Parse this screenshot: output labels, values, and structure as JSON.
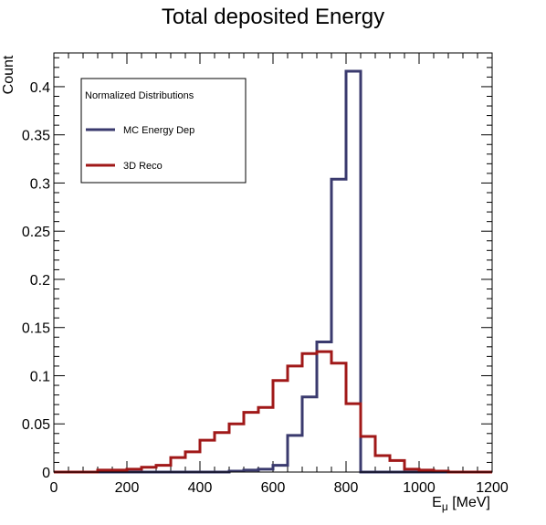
{
  "chart_data": {
    "type": "histogram",
    "title": "Total deposited Energy",
    "xlabel": {
      "main": "E",
      "sub": "μ",
      "unit": " [MeV]"
    },
    "ylabel": "Count",
    "xlim": [
      0,
      1200
    ],
    "ylim": [
      0,
      0.435
    ],
    "bin_edges": [
      0,
      40,
      80,
      120,
      160,
      200,
      240,
      280,
      320,
      360,
      400,
      440,
      480,
      520,
      560,
      600,
      640,
      680,
      720,
      760,
      800,
      840,
      880,
      920,
      960,
      1000,
      1040,
      1080,
      1120,
      1160,
      1200
    ],
    "x_ticks": [
      0,
      200,
      400,
      600,
      800,
      1000,
      1200
    ],
    "x_tick_labels": [
      "0",
      "200",
      "400",
      "600",
      "800",
      "1000",
      "1200"
    ],
    "y_ticks": [
      0,
      0.05,
      0.1,
      0.15,
      0.2,
      0.25,
      0.3,
      0.35,
      0.4
    ],
    "y_tick_labels": [
      "0",
      "0.05",
      "0.1",
      "0.15",
      "0.2",
      "0.25",
      "0.3",
      "0.35",
      "0.4"
    ],
    "legend": {
      "title": "Normalized Distributions",
      "placement": "top-left",
      "entries": [
        "MC Energy Dep",
        "3D Reco"
      ]
    },
    "series": [
      {
        "name": "MC Energy Dep",
        "color": "#3a3a6e",
        "values": [
          0,
          0,
          0,
          0,
          0,
          0,
          0,
          0,
          0,
          0,
          0,
          0,
          0.001,
          0.002,
          0.003,
          0.007,
          0.038,
          0.078,
          0.135,
          0.304,
          0.416,
          0,
          0,
          0,
          0,
          0,
          0,
          0,
          0,
          0
        ]
      },
      {
        "name": "3D Reco",
        "color": "#a01818",
        "values": [
          0,
          0,
          0,
          0.002,
          0.002,
          0.003,
          0.005,
          0.007,
          0.015,
          0.021,
          0.033,
          0.041,
          0.05,
          0.062,
          0.067,
          0.095,
          0.11,
          0.123,
          0.125,
          0.113,
          0.071,
          0.037,
          0.017,
          0.012,
          0.003,
          0.002,
          0.001,
          0,
          0,
          0
        ]
      }
    ]
  }
}
